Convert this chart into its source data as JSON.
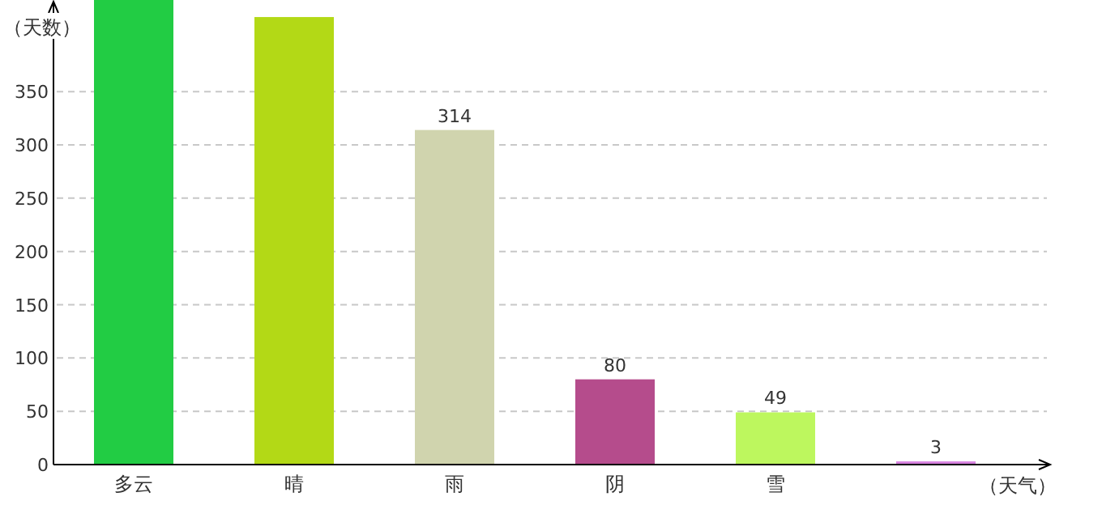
{
  "chart_data": {
    "type": "bar",
    "xlabel": "（天气）",
    "ylabel": "（天数）",
    "categories": [
      "多云",
      "晴",
      "雨",
      "阴",
      "雪",
      null
    ],
    "values": [
      436,
      420,
      314,
      80,
      49,
      3
    ],
    "colors": [
      "#22cc44",
      "#b3d916",
      "#d0d4ae",
      "#b54c8c",
      "#bdf75e",
      "#d783e0"
    ],
    "value_labels": [
      null,
      null,
      "314",
      "80",
      "49",
      "3"
    ],
    "ylim": [
      0,
      436
    ],
    "yticks": [
      0,
      50,
      100,
      150,
      200,
      250,
      300,
      350
    ],
    "grid": "y"
  }
}
